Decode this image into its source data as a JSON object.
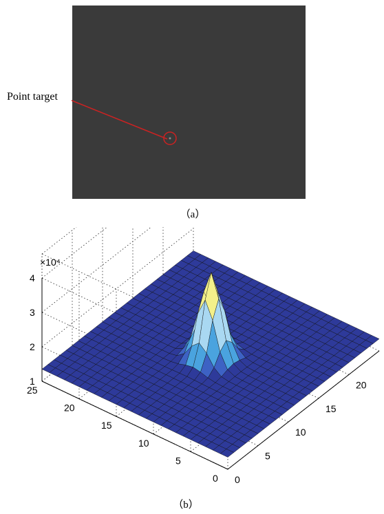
{
  "figure": {
    "panel_a": {
      "caption": "（a）",
      "annotation_label": "Point target"
    },
    "panel_b": {
      "caption": "（b）",
      "exponent_label": "×10⁴",
      "colors": {
        "surface_base": "#2e3a9a",
        "peak": "#e5381c",
        "highlight": "#f3f08a",
        "mid": "#4aa3df"
      }
    }
  },
  "chart_data": {
    "type": "surface",
    "title": "",
    "xlabel": "",
    "ylabel": "",
    "zlabel": "",
    "x_ticks": [
      "0",
      "5",
      "10",
      "15",
      "20",
      "25"
    ],
    "y_ticks": [
      "0",
      "5",
      "10",
      "15",
      "20",
      "25"
    ],
    "z_ticks": [
      "1",
      "2",
      "3",
      "4"
    ],
    "z_multiplier": "×10⁴",
    "xlim": [
      0,
      25
    ],
    "ylim": [
      0,
      25
    ],
    "zlim": [
      1,
      4
    ],
    "grid": true,
    "background_level": 1.35,
    "peak": {
      "x": 12,
      "y": 12,
      "z": 3.85
    }
  }
}
